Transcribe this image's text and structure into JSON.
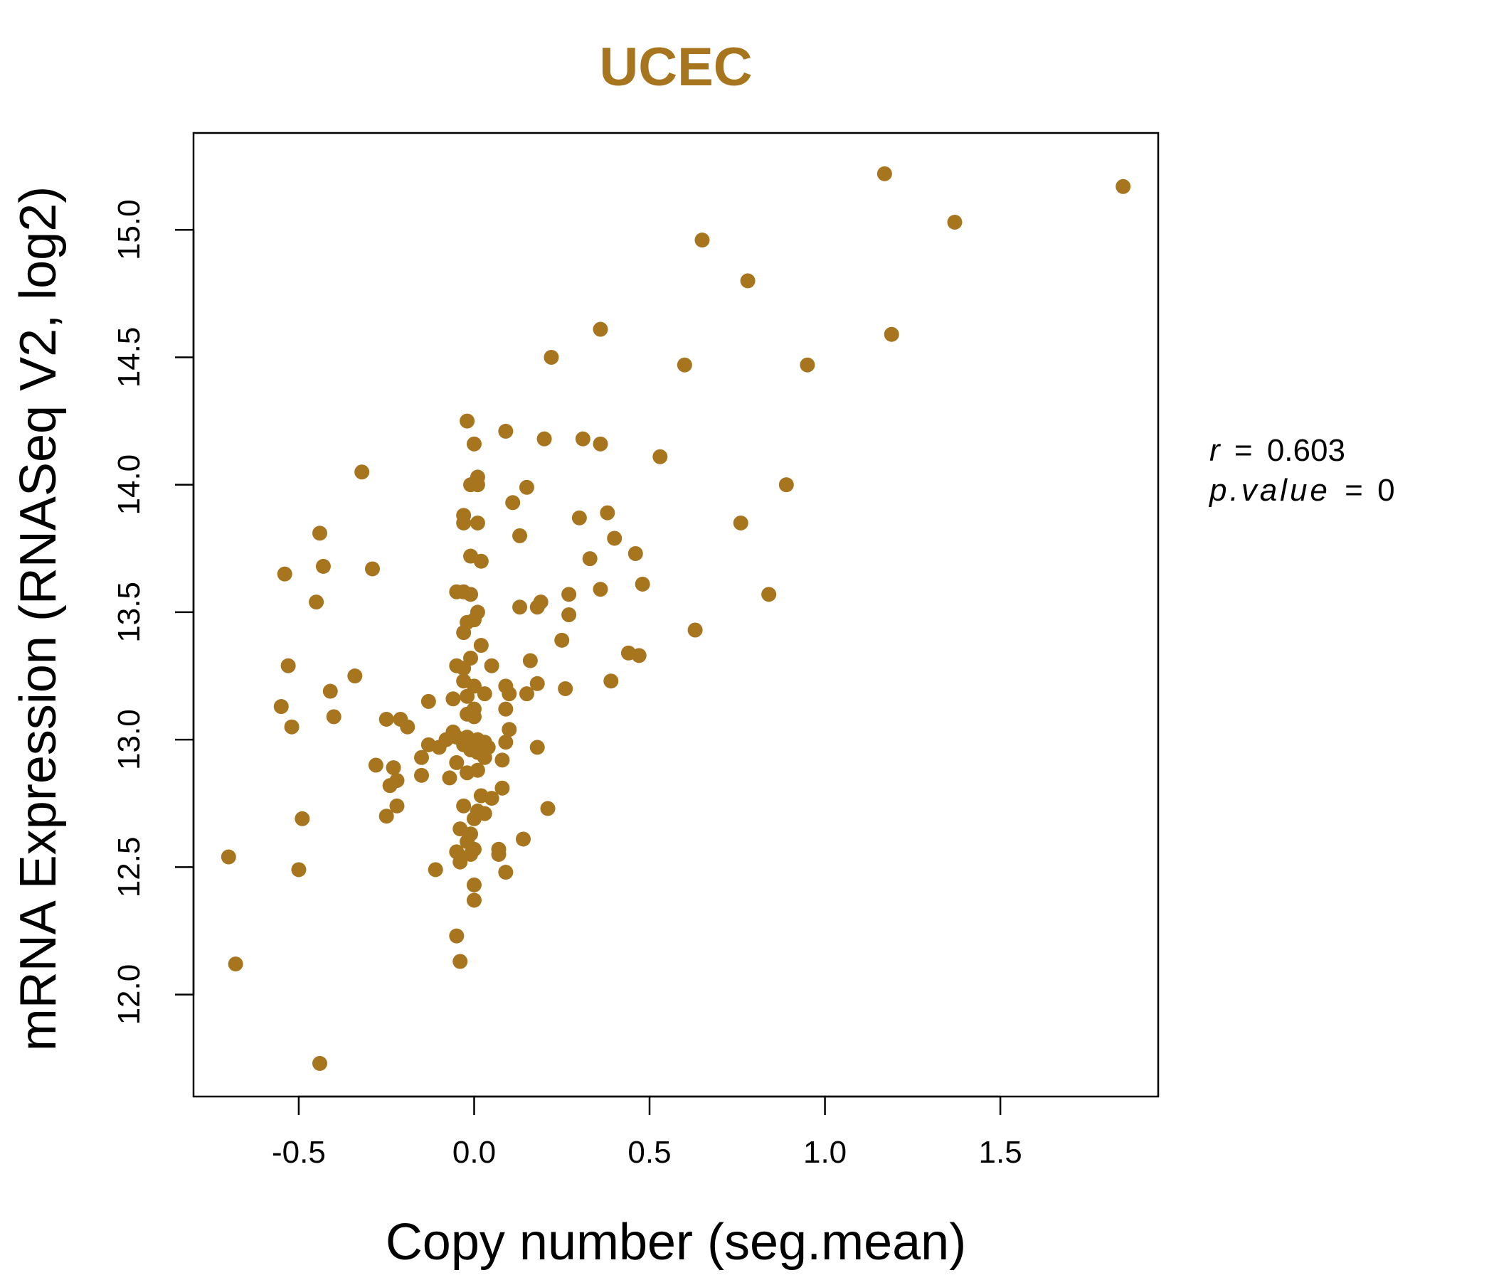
{
  "colors": {
    "accent": "#a8751f",
    "axis": "#000000",
    "background": "#ffffff"
  },
  "stats": {
    "r_label": "r",
    "r_value": "0.603",
    "p_label": "p.value",
    "p_value": "0",
    "eq": "="
  },
  "chart_data": {
    "type": "scatter",
    "title": "UCEC",
    "xlabel": "Copy number (seg.mean)",
    "ylabel": "mRNA Expression (RNASeq V2, log2)",
    "xlim": [
      -0.8,
      1.95
    ],
    "ylim": [
      11.6,
      15.38
    ],
    "xticks": [
      -0.5,
      0.0,
      0.5,
      1.0,
      1.5
    ],
    "xtick_labels": [
      "-0.5",
      "0.0",
      "0.5",
      "1.0",
      "1.5"
    ],
    "yticks": [
      12.0,
      12.5,
      13.0,
      13.5,
      14.0,
      14.5,
      15.0
    ],
    "ytick_labels": [
      "12.0",
      "12.5",
      "13.0",
      "13.5",
      "14.0",
      "14.5",
      "15.0"
    ],
    "grid": false,
    "legend": "none",
    "points": [
      [
        1.17,
        15.22
      ],
      [
        1.85,
        15.17
      ],
      [
        1.37,
        15.03
      ],
      [
        0.65,
        14.96
      ],
      [
        0.78,
        14.8
      ],
      [
        0.36,
        14.61
      ],
      [
        1.19,
        14.59
      ],
      [
        0.22,
        14.5
      ],
      [
        0.6,
        14.47
      ],
      [
        0.95,
        14.47
      ],
      [
        -0.02,
        14.25
      ],
      [
        0.09,
        14.21
      ],
      [
        0.2,
        14.18
      ],
      [
        0.31,
        14.18
      ],
      [
        0.36,
        14.16
      ],
      [
        0.0,
        14.16
      ],
      [
        0.53,
        14.11
      ],
      [
        -0.32,
        14.05
      ],
      [
        0.01,
        14.03
      ],
      [
        -0.01,
        14.0
      ],
      [
        0.01,
        14.0
      ],
      [
        0.89,
        14.0
      ],
      [
        0.15,
        13.99
      ],
      [
        0.11,
        13.93
      ],
      [
        0.38,
        13.89
      ],
      [
        -0.03,
        13.88
      ],
      [
        0.3,
        13.87
      ],
      [
        -0.03,
        13.85
      ],
      [
        0.01,
        13.85
      ],
      [
        0.76,
        13.85
      ],
      [
        -0.44,
        13.81
      ],
      [
        0.13,
        13.8
      ],
      [
        0.4,
        13.79
      ],
      [
        -0.01,
        13.72
      ],
      [
        0.46,
        13.73
      ],
      [
        0.33,
        13.71
      ],
      [
        0.02,
        13.7
      ],
      [
        -0.43,
        13.68
      ],
      [
        -0.29,
        13.67
      ],
      [
        -0.54,
        13.65
      ],
      [
        0.48,
        13.61
      ],
      [
        0.36,
        13.59
      ],
      [
        -0.05,
        13.58
      ],
      [
        -0.03,
        13.58
      ],
      [
        -0.01,
        13.57
      ],
      [
        0.27,
        13.57
      ],
      [
        0.84,
        13.57
      ],
      [
        -0.45,
        13.54
      ],
      [
        0.19,
        13.54
      ],
      [
        0.18,
        13.52
      ],
      [
        0.13,
        13.52
      ],
      [
        0.01,
        13.5
      ],
      [
        0.27,
        13.49
      ],
      [
        0.0,
        13.47
      ],
      [
        -0.02,
        13.46
      ],
      [
        -0.03,
        13.42
      ],
      [
        0.63,
        13.43
      ],
      [
        0.25,
        13.39
      ],
      [
        0.02,
        13.37
      ],
      [
        0.44,
        13.34
      ],
      [
        0.47,
        13.33
      ],
      [
        -0.01,
        13.32
      ],
      [
        0.16,
        13.31
      ],
      [
        -0.53,
        13.29
      ],
      [
        -0.05,
        13.29
      ],
      [
        0.05,
        13.29
      ],
      [
        -0.03,
        13.28
      ],
      [
        -0.34,
        13.25
      ],
      [
        -0.03,
        13.23
      ],
      [
        0.39,
        13.23
      ],
      [
        0.0,
        13.21
      ],
      [
        0.09,
        13.21
      ],
      [
        0.18,
        13.22
      ],
      [
        0.26,
        13.2
      ],
      [
        -0.41,
        13.19
      ],
      [
        0.03,
        13.18
      ],
      [
        0.1,
        13.18
      ],
      [
        0.15,
        13.18
      ],
      [
        -0.02,
        13.17
      ],
      [
        -0.06,
        13.16
      ],
      [
        -0.13,
        13.15
      ],
      [
        -0.55,
        13.13
      ],
      [
        0.09,
        13.12
      ],
      [
        0.0,
        13.12
      ],
      [
        -0.02,
        13.1
      ],
      [
        -0.4,
        13.09
      ],
      [
        0.0,
        13.09
      ],
      [
        -0.25,
        13.08
      ],
      [
        -0.21,
        13.08
      ],
      [
        -0.52,
        13.05
      ],
      [
        -0.19,
        13.05
      ],
      [
        0.1,
        13.04
      ],
      [
        -0.06,
        13.03
      ],
      [
        -0.05,
        13.01
      ],
      [
        -0.02,
        13.01
      ],
      [
        0.01,
        13.0
      ],
      [
        -0.08,
        13.0
      ],
      [
        0.03,
        12.99
      ],
      [
        0.09,
        12.99
      ],
      [
        -0.03,
        12.98
      ],
      [
        -0.13,
        12.98
      ],
      [
        0.0,
        12.97
      ],
      [
        -0.1,
        12.97
      ],
      [
        0.04,
        12.97
      ],
      [
        0.18,
        12.97
      ],
      [
        -0.01,
        12.96
      ],
      [
        0.01,
        12.95
      ],
      [
        -0.15,
        12.93
      ],
      [
        0.03,
        12.93
      ],
      [
        0.08,
        12.92
      ],
      [
        -0.05,
        12.91
      ],
      [
        -0.28,
        12.9
      ],
      [
        -0.23,
        12.89
      ],
      [
        0.01,
        12.88
      ],
      [
        -0.02,
        12.87
      ],
      [
        -0.15,
        12.86
      ],
      [
        -0.07,
        12.85
      ],
      [
        -0.22,
        12.84
      ],
      [
        -0.24,
        12.82
      ],
      [
        0.08,
        12.81
      ],
      [
        0.02,
        12.78
      ],
      [
        0.05,
        12.77
      ],
      [
        -0.03,
        12.74
      ],
      [
        -0.22,
        12.74
      ],
      [
        0.21,
        12.73
      ],
      [
        0.01,
        12.72
      ],
      [
        0.03,
        12.71
      ],
      [
        -0.25,
        12.7
      ],
      [
        0.0,
        12.69
      ],
      [
        -0.49,
        12.69
      ],
      [
        -0.04,
        12.65
      ],
      [
        -0.01,
        12.63
      ],
      [
        0.14,
        12.61
      ],
      [
        -0.02,
        12.6
      ],
      [
        0.0,
        12.57
      ],
      [
        0.07,
        12.57
      ],
      [
        -0.05,
        12.56
      ],
      [
        0.07,
        12.55
      ],
      [
        -0.01,
        12.55
      ],
      [
        -0.7,
        12.54
      ],
      [
        -0.04,
        12.52
      ],
      [
        -0.11,
        12.49
      ],
      [
        -0.5,
        12.49
      ],
      [
        0.09,
        12.48
      ],
      [
        0.0,
        12.43
      ],
      [
        0.0,
        12.37
      ],
      [
        -0.05,
        12.23
      ],
      [
        -0.04,
        12.13
      ],
      [
        -0.68,
        12.12
      ],
      [
        -0.44,
        11.73
      ]
    ]
  }
}
